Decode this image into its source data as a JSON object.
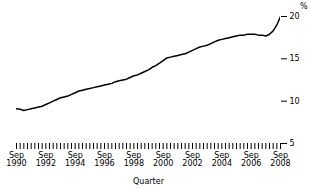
{
  "chart_data": {
    "type": "line",
    "xlabel": "Quarter",
    "ylabel": "%",
    "categories": [
      "Sep\n1990",
      null,
      null,
      null,
      null,
      null,
      null,
      null,
      "Sep\n1992",
      null,
      null,
      null,
      null,
      null,
      null,
      null,
      "Sep\n1994",
      null,
      null,
      null,
      null,
      null,
      null,
      null,
      "Sep\n1996",
      null,
      null,
      null,
      null,
      null,
      null,
      null,
      "Sep\n1998",
      null,
      null,
      null,
      null,
      null,
      null,
      null,
      "Sep\n2000",
      null,
      null,
      null,
      null,
      null,
      null,
      null,
      "Sep\n2002",
      null,
      null,
      null,
      null,
      null,
      null,
      null,
      "Sep\n2004",
      null,
      null,
      null,
      null,
      null,
      null,
      null,
      "Sep\n2006",
      null,
      null,
      null,
      null,
      null,
      null,
      null,
      "Sep\n2008"
    ],
    "values": [
      9.1,
      9.05,
      8.9,
      9.0,
      9.1,
      9.2,
      9.3,
      9.4,
      9.6,
      9.8,
      10.0,
      10.2,
      10.4,
      10.5,
      10.6,
      10.8,
      11.0,
      11.2,
      11.3,
      11.4,
      11.5,
      11.6,
      11.7,
      11.8,
      11.9,
      12.0,
      12.1,
      12.3,
      12.4,
      12.5,
      12.6,
      12.8,
      13.0,
      13.1,
      13.3,
      13.5,
      13.7,
      14.0,
      14.2,
      14.5,
      14.8,
      15.1,
      15.2,
      15.3,
      15.4,
      15.5,
      15.6,
      15.8,
      16.0,
      16.2,
      16.4,
      16.5,
      16.6,
      16.8,
      17.0,
      17.2,
      17.3,
      17.4,
      17.5,
      17.6,
      17.7,
      17.8,
      17.8,
      17.9,
      17.9,
      17.9,
      17.8,
      17.8,
      17.7,
      17.9,
      18.3,
      19.0,
      20.0
    ],
    "color": "#000000",
    "ylim": [
      5,
      20
    ],
    "yticks": [
      5,
      10,
      15,
      20
    ],
    "grid": false
  }
}
